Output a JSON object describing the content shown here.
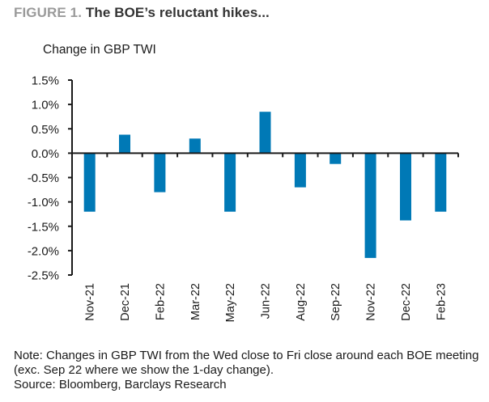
{
  "figure": {
    "label": "FIGURE 1.",
    "title": "The BOE’s reluctant hikes..."
  },
  "notes": [
    "Note: Changes in GBP TWI from the Wed close to Fri close around each BOE meeting",
    "(exc. Sep 22 where we show the 1-day change).",
    "Source: Bloomberg, Barclays Research"
  ],
  "colors": {
    "bar": "#0079B6",
    "axis": "#1a1a1a",
    "text": "#1a1a1a"
  },
  "chart_data": {
    "type": "bar",
    "title": "The BOE’s reluctant hikes...",
    "xlabel": "",
    "ylabel": "Change in GBP TWI",
    "categories": [
      "Nov-21",
      "Dec-21",
      "Feb-22",
      "Mar-22",
      "May-22",
      "Jun-22",
      "Aug-22",
      "Sep-22",
      "Nov-22",
      "Dec-22",
      "Feb-23"
    ],
    "series": [
      {
        "name": "Change in GBP TWI",
        "values": [
          -1.2,
          0.38,
          -0.8,
          0.3,
          -1.2,
          0.85,
          -0.7,
          -0.22,
          -2.15,
          -1.38,
          -1.2
        ]
      }
    ],
    "unit": "%",
    "ylim": [
      -2.5,
      1.5
    ],
    "yticks": [
      1.5,
      1.0,
      0.5,
      0.0,
      -0.5,
      -1.0,
      -1.5,
      -2.0,
      -2.5
    ],
    "ytick_labels": [
      "1.5%",
      "1.0%",
      "0.5%",
      "0.0%",
      "-0.5%",
      "-1.0%",
      "-1.5%",
      "-2.0%",
      "-2.5%"
    ],
    "grid": false,
    "legend": "none"
  }
}
